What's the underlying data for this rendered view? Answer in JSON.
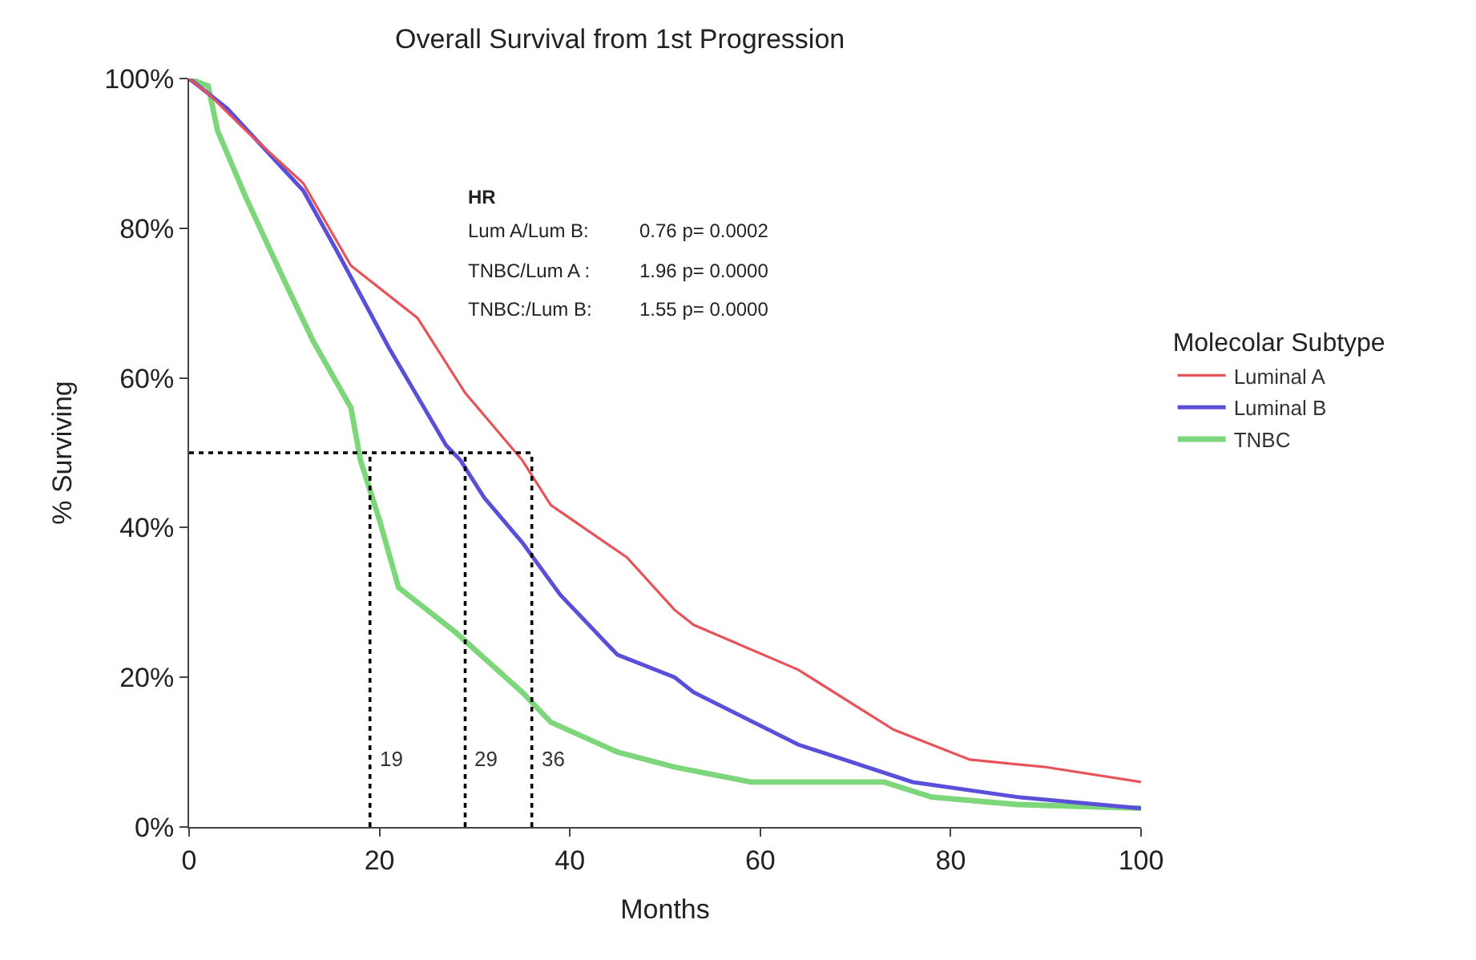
{
  "chart_data": {
    "type": "line",
    "title": "Overall Survival from 1st Progression",
    "xlabel": "Months",
    "ylabel": "% Surviving",
    "legend_title": "Molecolar Subtype",
    "xlim": [
      0,
      100
    ],
    "xticks": [
      0,
      20,
      40,
      60,
      80,
      100
    ],
    "ylim": [
      0,
      100
    ],
    "yticks": [
      {
        "value": 0,
        "label": "0%"
      },
      {
        "value": 20,
        "label": "20%"
      },
      {
        "value": 40,
        "label": "40%"
      },
      {
        "value": 60,
        "label": "60%"
      },
      {
        "value": 80,
        "label": "80%"
      },
      {
        "value": 100,
        "label": "100%"
      }
    ],
    "legend": "right",
    "marker": "none",
    "line_style": "solid",
    "series": [
      {
        "name": "Luminal A",
        "color": "#e8535a",
        "x": [
          0,
          2,
          6,
          12,
          17,
          24,
          29,
          35,
          38,
          46,
          51,
          53,
          64,
          74,
          82,
          90,
          100
        ],
        "values": [
          100,
          98,
          93,
          86,
          75,
          68,
          58,
          49,
          43,
          36,
          29,
          27,
          21,
          13,
          9,
          8,
          6
        ]
      },
      {
        "name": "Luminal B",
        "color": "#5a4fd8",
        "x": [
          0,
          1,
          4,
          12,
          15.5,
          21,
          27,
          28.5,
          31,
          35,
          39,
          45,
          51,
          53,
          64,
          76,
          87,
          100
        ],
        "values": [
          100,
          99,
          96,
          85,
          77,
          64,
          51,
          49,
          44,
          38,
          31,
          23,
          20,
          18,
          11,
          6,
          4,
          2.5
        ]
      },
      {
        "name": "TNBC",
        "color": "#7ed67a",
        "x": [
          0,
          2,
          3,
          6,
          10,
          13,
          17,
          18,
          20,
          22,
          28,
          35,
          38,
          45,
          51,
          59,
          73,
          78,
          87,
          100
        ],
        "values": [
          100,
          99,
          93,
          84,
          73,
          65,
          56,
          49,
          41,
          32,
          26,
          18,
          14,
          10,
          8,
          6,
          6,
          4,
          3,
          2.5
        ]
      }
    ],
    "ref_lines": [
      {
        "axis": "y",
        "value": 50,
        "label": null,
        "color": "#000000",
        "line_style": "dotted"
      },
      {
        "axis": "x",
        "value": 19,
        "label": "19",
        "color": "#000000",
        "line_style": "dotted"
      },
      {
        "axis": "x",
        "value": 29,
        "label": "29",
        "color": "#000000",
        "line_style": "dotted"
      },
      {
        "axis": "x",
        "value": 36,
        "label": "36",
        "color": "#000000",
        "line_style": "dotted"
      }
    ],
    "annotations": [
      "HR",
      "Lum A/Lum B:",
      "0.76 p= 0.0002",
      "TNBC/Lum A :",
      "1.96 p= 0.0000",
      "TNBC:/Lum B:",
      "1.55 p= 0.0000"
    ]
  }
}
